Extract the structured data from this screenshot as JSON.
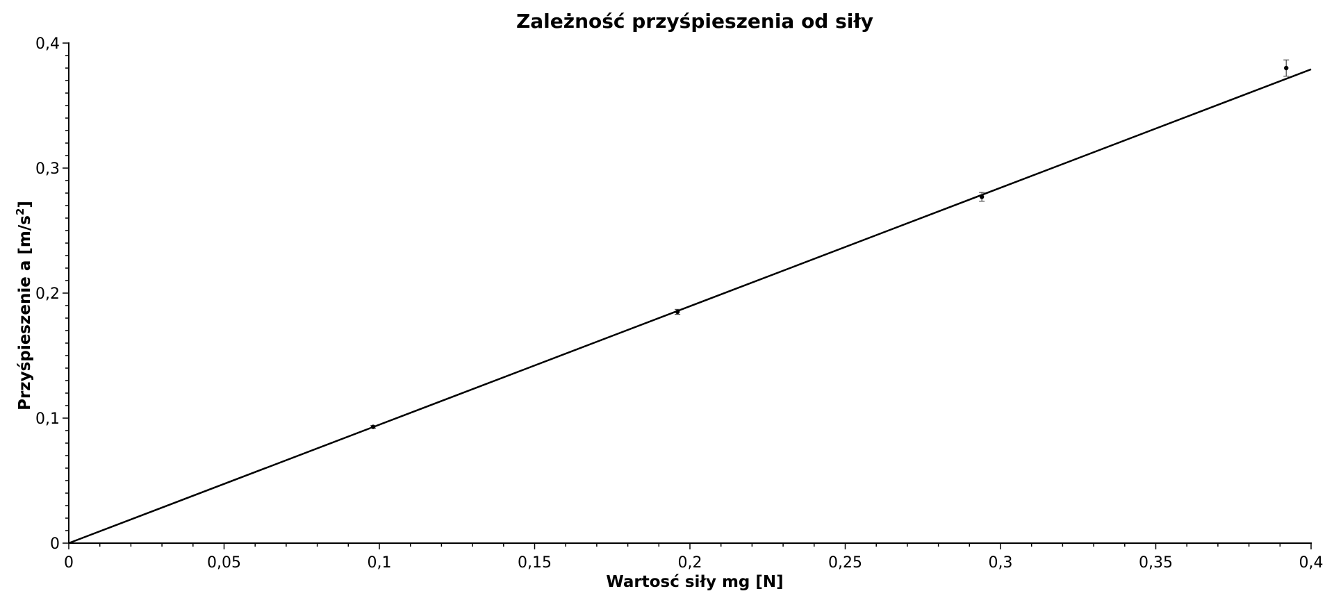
{
  "chart_data": {
    "type": "scatter",
    "title": "Zależność przyśpieszenia od siły",
    "xlabel": "Wartosć siły mg [N]",
    "ylabel": {
      "main": "Przyśpieszenie a [m/s",
      "sup": "2",
      "close": "]"
    },
    "xlim": [
      0,
      0.4
    ],
    "ylim": [
      0,
      0.4
    ],
    "grid": false,
    "x_ticks": [
      {
        "value": 0,
        "label": "0"
      },
      {
        "value": 0.05,
        "label": "0,05"
      },
      {
        "value": 0.1,
        "label": "0,1"
      },
      {
        "value": 0.15,
        "label": "0,15"
      },
      {
        "value": 0.2,
        "label": "0,2"
      },
      {
        "value": 0.25,
        "label": "0,25"
      },
      {
        "value": 0.3,
        "label": "0,3"
      },
      {
        "value": 0.35,
        "label": "0,35"
      },
      {
        "value": 0.4,
        "label": "0,4"
      }
    ],
    "y_ticks": [
      {
        "value": 0,
        "label": "0"
      },
      {
        "value": 0.1,
        "label": "0,1"
      },
      {
        "value": 0.2,
        "label": "0,2"
      },
      {
        "value": 0.3,
        "label": "0,3"
      },
      {
        "value": 0.4,
        "label": "0,4"
      }
    ],
    "series": [
      {
        "type": "scatter",
        "points": [
          {
            "x": 0.098,
            "y": 0.093,
            "err": 0.001
          },
          {
            "x": 0.196,
            "y": 0.185,
            "err": 0.002
          },
          {
            "x": 0.294,
            "y": 0.277,
            "err": 0.0035
          },
          {
            "x": 0.392,
            "y": 0.38,
            "err": 0.0065
          }
        ]
      },
      {
        "type": "line",
        "x": [
          0,
          0.4
        ],
        "y": [
          0,
          0.379
        ]
      }
    ]
  }
}
